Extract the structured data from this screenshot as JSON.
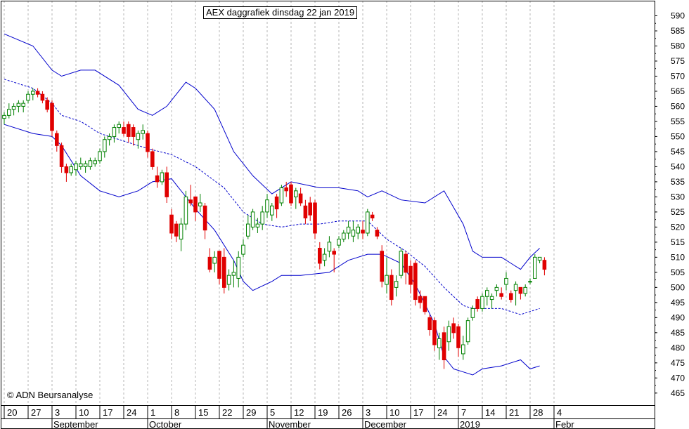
{
  "chart_data": {
    "type": "candlestick",
    "title": "AEX daggrafiek dinsdag 22 jan 2019",
    "copyright": "© ADN Beursanalyse",
    "ylim": [
      461,
      595
    ],
    "y_ticks": [
      465,
      470,
      475,
      480,
      485,
      490,
      495,
      500,
      505,
      510,
      515,
      520,
      525,
      530,
      535,
      540,
      545,
      550,
      555,
      560,
      565,
      570,
      575,
      580,
      585,
      590
    ],
    "x_day_ticks": [
      {
        "label": "20",
        "day": 0
      },
      {
        "label": "27",
        "day": 5
      },
      {
        "label": "3",
        "day": 10
      },
      {
        "label": "10",
        "day": 15
      },
      {
        "label": "17",
        "day": 20
      },
      {
        "label": "24",
        "day": 25
      },
      {
        "label": "1",
        "day": 30
      },
      {
        "label": "8",
        "day": 35
      },
      {
        "label": "15",
        "day": 40
      },
      {
        "label": "22",
        "day": 45
      },
      {
        "label": "29",
        "day": 50
      },
      {
        "label": "5",
        "day": 55
      },
      {
        "label": "12",
        "day": 60
      },
      {
        "label": "19",
        "day": 65
      },
      {
        "label": "26",
        "day": 70
      },
      {
        "label": "3",
        "day": 75
      },
      {
        "label": "10",
        "day": 80
      },
      {
        "label": "17",
        "day": 85
      },
      {
        "label": "24",
        "day": 90
      },
      {
        "label": "7",
        "day": 95
      },
      {
        "label": "14",
        "day": 100
      },
      {
        "label": "21",
        "day": 105
      },
      {
        "label": "28",
        "day": 110
      },
      {
        "label": "4",
        "day": 115
      }
    ],
    "x_month_ticks": [
      {
        "label": "September",
        "day": 10
      },
      {
        "label": "October",
        "day": 30
      },
      {
        "label": "November",
        "day": 55
      },
      {
        "label": "December",
        "day": 75
      },
      {
        "label": "2019",
        "day": 95
      },
      {
        "label": "Febr",
        "day": 115
      }
    ],
    "colors": {
      "up": "#008000",
      "down": "#e00000",
      "band": "#0000cc",
      "grid": "#b4b4b4"
    },
    "candles": [
      [
        0,
        556,
        558,
        554,
        557
      ],
      [
        1,
        557,
        561,
        556,
        559
      ],
      [
        2,
        559,
        561,
        557,
        560
      ],
      [
        3,
        560,
        562,
        558,
        561
      ],
      [
        4,
        560,
        562,
        558,
        561
      ],
      [
        5,
        562,
        565,
        561,
        564
      ],
      [
        6,
        564,
        566,
        562,
        565
      ],
      [
        7,
        565,
        566,
        563,
        564
      ],
      [
        8,
        564,
        565,
        561,
        562
      ],
      [
        9,
        562,
        563,
        558,
        559
      ],
      [
        10,
        561,
        562,
        550,
        552
      ],
      [
        11,
        551,
        552,
        545,
        547
      ],
      [
        12,
        547,
        548,
        538,
        540
      ],
      [
        13,
        540,
        541,
        535,
        538
      ],
      [
        14,
        538,
        541,
        537,
        540
      ],
      [
        15,
        539,
        542,
        537,
        541
      ],
      [
        16,
        540,
        543,
        539,
        541
      ],
      [
        17,
        540,
        542,
        538,
        541
      ],
      [
        18,
        540,
        543,
        539,
        542
      ],
      [
        19,
        541,
        543,
        540,
        542
      ],
      [
        20,
        542,
        546,
        541,
        545
      ],
      [
        21,
        545,
        550,
        543,
        549
      ],
      [
        22,
        549,
        551,
        547,
        550
      ],
      [
        23,
        550,
        554,
        548,
        553
      ],
      [
        24,
        553,
        555,
        551,
        554
      ],
      [
        25,
        553,
        555,
        550,
        551
      ],
      [
        26,
        554,
        555,
        548,
        550
      ],
      [
        27,
        553,
        554,
        547,
        550
      ],
      [
        28,
        549,
        552,
        546,
        551
      ],
      [
        29,
        551,
        554,
        549,
        552
      ],
      [
        30,
        551,
        552,
        543,
        545
      ],
      [
        31,
        545,
        546,
        539,
        540
      ],
      [
        32,
        537,
        540,
        533,
        535
      ],
      [
        33,
        535,
        539,
        534,
        538
      ],
      [
        34,
        538,
        540,
        528,
        530
      ],
      [
        35,
        524,
        526,
        516,
        518
      ],
      [
        36,
        521,
        522,
        515,
        517
      ],
      [
        37,
        516,
        523,
        512,
        521
      ],
      [
        38,
        521,
        532,
        519,
        530
      ],
      [
        39,
        529,
        534,
        527,
        528
      ],
      [
        40,
        530,
        530,
        522,
        525
      ],
      [
        41,
        527,
        531,
        525,
        528
      ],
      [
        42,
        527,
        528,
        516,
        519
      ],
      [
        43,
        510,
        513,
        505,
        506
      ],
      [
        44,
        508,
        512,
        505,
        510
      ],
      [
        45,
        512,
        512,
        501,
        503
      ],
      [
        46,
        510,
        513,
        498,
        500
      ],
      [
        47,
        501,
        506,
        499,
        504
      ],
      [
        48,
        504,
        509,
        500,
        505
      ],
      [
        49,
        503,
        512,
        500,
        510
      ],
      [
        50,
        511,
        516,
        510,
        514
      ],
      [
        51,
        517,
        524,
        516,
        521
      ],
      [
        52,
        520,
        526,
        519,
        525
      ],
      [
        53,
        520,
        523,
        518,
        521
      ],
      [
        54,
        521,
        527,
        519,
        525
      ],
      [
        55,
        525,
        531,
        523,
        529
      ],
      [
        56,
        524,
        528,
        522,
        527
      ],
      [
        57,
        530,
        531,
        523,
        526
      ],
      [
        58,
        528,
        534,
        527,
        533
      ],
      [
        59,
        533,
        535,
        530,
        532
      ],
      [
        60,
        534,
        535,
        527,
        528
      ],
      [
        61,
        530,
        533,
        526,
        532
      ],
      [
        62,
        531,
        533,
        527,
        528
      ],
      [
        63,
        527,
        529,
        521,
        523
      ],
      [
        64,
        528,
        530,
        522,
        524
      ],
      [
        65,
        528,
        529,
        516,
        518
      ],
      [
        66,
        513,
        515,
        506,
        508
      ],
      [
        67,
        509,
        513,
        507,
        511
      ],
      [
        68,
        512,
        517,
        510,
        515
      ],
      [
        69,
        512,
        513,
        505,
        511
      ],
      [
        70,
        514,
        517,
        513,
        516
      ],
      [
        71,
        516,
        519,
        515,
        518
      ],
      [
        72,
        518,
        522,
        516,
        520
      ],
      [
        73,
        517,
        522,
        515,
        519
      ],
      [
        74,
        518,
        521,
        516,
        520
      ],
      [
        75,
        519,
        522,
        516,
        518
      ],
      [
        76,
        518,
        526,
        517,
        525
      ],
      [
        77,
        524,
        525,
        522,
        523
      ],
      [
        78,
        519,
        520,
        516,
        517
      ],
      [
        79,
        512,
        514,
        500,
        502
      ],
      [
        80,
        501,
        510,
        498,
        504
      ],
      [
        81,
        504,
        506,
        494,
        496
      ],
      [
        82,
        500,
        504,
        497,
        502
      ],
      [
        83,
        504,
        513,
        503,
        512
      ],
      [
        84,
        511,
        512,
        501,
        505
      ],
      [
        85,
        507,
        509,
        498,
        501
      ],
      [
        86,
        508,
        509,
        494,
        496
      ],
      [
        87,
        497,
        499,
        493,
        495
      ],
      [
        88,
        497,
        497,
        491,
        492
      ],
      [
        89,
        490,
        491,
        484,
        486
      ],
      [
        90,
        489,
        490,
        479,
        481
      ],
      [
        91,
        480,
        485,
        476,
        483
      ],
      [
        92,
        485,
        487,
        473,
        476
      ],
      [
        93,
        482,
        489,
        479,
        487
      ],
      [
        94,
        488,
        490,
        483,
        485
      ],
      [
        95,
        487,
        488,
        477,
        480
      ],
      [
        96,
        478,
        484,
        476,
        481
      ],
      [
        97,
        482,
        490,
        481,
        489
      ],
      [
        98,
        490,
        494,
        489,
        493
      ],
      [
        99,
        496,
        497,
        492,
        493
      ],
      [
        100,
        493,
        498,
        492,
        497
      ],
      [
        101,
        497,
        500,
        494,
        499
      ],
      [
        102,
        496,
        498,
        493,
        497
      ],
      [
        103,
        499,
        501,
        497,
        500
      ],
      [
        104,
        498,
        500,
        496,
        497
      ],
      [
        105,
        501,
        505,
        499,
        503
      ],
      [
        106,
        498,
        499,
        495,
        496
      ],
      [
        107,
        499,
        502,
        494,
        501
      ],
      [
        108,
        500,
        500,
        496,
        498
      ],
      [
        109,
        498,
        501,
        497,
        500
      ],
      [
        110,
        502,
        503,
        501,
        502
      ],
      [
        111,
        503,
        511,
        503,
        510
      ],
      [
        112,
        509,
        510,
        508,
        510
      ],
      [
        113,
        509,
        510,
        504,
        506
      ]
    ],
    "bollinger": {
      "upper": [
        [
          0,
          584
        ],
        [
          6,
          580
        ],
        [
          10,
          572
        ],
        [
          12,
          570
        ],
        [
          16,
          572
        ],
        [
          19,
          572
        ],
        [
          24,
          567
        ],
        [
          28,
          559
        ],
        [
          31,
          557
        ],
        [
          34,
          560
        ],
        [
          38,
          568
        ],
        [
          40,
          566
        ],
        [
          44,
          559
        ],
        [
          48,
          545
        ],
        [
          52,
          537
        ],
        [
          56,
          531
        ],
        [
          60,
          535
        ],
        [
          66,
          533
        ],
        [
          70,
          533
        ],
        [
          74,
          532
        ],
        [
          76,
          530
        ],
        [
          79,
          532
        ],
        [
          83,
          529
        ],
        [
          88,
          528
        ],
        [
          92,
          532
        ],
        [
          96,
          521
        ],
        [
          98,
          512
        ],
        [
          100,
          510
        ],
        [
          104,
          510
        ],
        [
          106,
          508
        ],
        [
          108,
          506
        ],
        [
          110,
          510
        ],
        [
          112,
          513
        ]
      ],
      "middle": [
        [
          0,
          569
        ],
        [
          6,
          566
        ],
        [
          10,
          561
        ],
        [
          12,
          557
        ],
        [
          16,
          555
        ],
        [
          20,
          551
        ],
        [
          24,
          549
        ],
        [
          28,
          547
        ],
        [
          30,
          546
        ],
        [
          35,
          544
        ],
        [
          40,
          540
        ],
        [
          46,
          533
        ],
        [
          50,
          525
        ],
        [
          54,
          521
        ],
        [
          58,
          520
        ],
        [
          62,
          521
        ],
        [
          66,
          521
        ],
        [
          70,
          522
        ],
        [
          74,
          522
        ],
        [
          76,
          522
        ],
        [
          80,
          516
        ],
        [
          84,
          512
        ],
        [
          88,
          507
        ],
        [
          92,
          500
        ],
        [
          96,
          494
        ],
        [
          98,
          493
        ],
        [
          102,
          493
        ],
        [
          104,
          493
        ],
        [
          106,
          492
        ],
        [
          108,
          491
        ],
        [
          110,
          492
        ],
        [
          112,
          493
        ]
      ],
      "lower": [
        [
          0,
          554
        ],
        [
          6,
          551
        ],
        [
          10,
          550
        ],
        [
          12,
          547
        ],
        [
          16,
          537
        ],
        [
          20,
          532
        ],
        [
          24,
          530
        ],
        [
          28,
          532
        ],
        [
          31,
          535
        ],
        [
          35,
          536
        ],
        [
          40,
          526
        ],
        [
          44,
          519
        ],
        [
          48,
          509
        ],
        [
          50,
          502
        ],
        [
          52,
          499
        ],
        [
          56,
          502
        ],
        [
          58,
          504
        ],
        [
          62,
          504
        ],
        [
          68,
          505
        ],
        [
          72,
          509
        ],
        [
          76,
          511
        ],
        [
          79,
          511
        ],
        [
          83,
          508
        ],
        [
          86,
          501
        ],
        [
          90,
          488
        ],
        [
          92,
          477
        ],
        [
          94,
          473
        ],
        [
          96,
          472
        ],
        [
          98,
          471
        ],
        [
          100,
          473
        ],
        [
          104,
          474
        ],
        [
          106,
          475
        ],
        [
          108,
          476
        ],
        [
          110,
          473
        ],
        [
          112,
          474
        ]
      ]
    }
  }
}
